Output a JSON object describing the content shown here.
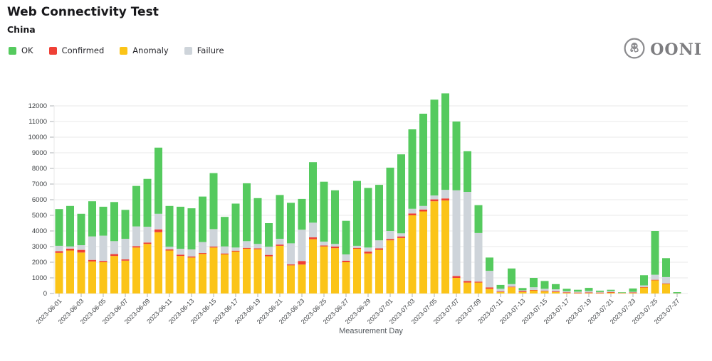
{
  "header": {
    "title": "Web Connectivity Test",
    "subtitle": "China",
    "logo_text": "OONI"
  },
  "legend": {
    "items": [
      {
        "label": "OK",
        "color": "#55ca5e"
      },
      {
        "label": "Confirmed",
        "color": "#ef4036"
      },
      {
        "label": "Anomaly",
        "color": "#fbc418"
      },
      {
        "label": "Failure",
        "color": "#ced4da"
      }
    ]
  },
  "chart_data": {
    "type": "bar",
    "stacked": true,
    "title": "Web Connectivity Test",
    "subtitle": "China",
    "xlabel": "Measurement Day",
    "ylabel": "",
    "ylim": [
      0,
      12900
    ],
    "ytick_step": 1000,
    "ytick_max": 12000,
    "grid": "horizontal",
    "legend_position": "top-left",
    "x_label_every": 2,
    "categories": [
      "2023-06-01",
      "2023-06-02",
      "2023-06-03",
      "2023-06-04",
      "2023-06-05",
      "2023-06-06",
      "2023-06-07",
      "2023-06-08",
      "2023-06-09",
      "2023-06-10",
      "2023-06-11",
      "2023-06-12",
      "2023-06-13",
      "2023-06-14",
      "2023-06-15",
      "2023-06-16",
      "2023-06-17",
      "2023-06-18",
      "2023-06-19",
      "2023-06-20",
      "2023-06-21",
      "2023-06-22",
      "2023-06-23",
      "2023-06-24",
      "2023-06-25",
      "2023-06-26",
      "2023-06-27",
      "2023-06-28",
      "2023-06-29",
      "2023-06-30",
      "2023-07-01",
      "2023-07-02",
      "2023-07-03",
      "2023-07-04",
      "2023-07-05",
      "2023-07-06",
      "2023-07-07",
      "2023-07-08",
      "2023-07-09",
      "2023-07-10",
      "2023-07-11",
      "2023-07-12",
      "2023-07-13",
      "2023-07-14",
      "2023-07-15",
      "2023-07-16",
      "2023-07-17",
      "2023-07-18",
      "2023-07-19",
      "2023-07-20",
      "2023-07-21",
      "2023-07-22",
      "2023-07-23",
      "2023-07-24",
      "2023-07-25",
      "2023-07-26",
      "2023-07-27"
    ],
    "series": [
      {
        "name": "Anomaly",
        "color": "#fbc418",
        "values": [
          2600,
          2750,
          2620,
          2050,
          2000,
          2400,
          2100,
          2940,
          3170,
          3920,
          2750,
          2400,
          2300,
          2530,
          2940,
          2500,
          2680,
          2860,
          2830,
          2380,
          3050,
          1800,
          1850,
          3470,
          3010,
          2900,
          2000,
          2860,
          2560,
          2790,
          3400,
          3550,
          5000,
          5250,
          5900,
          5950,
          1000,
          700,
          700,
          300,
          100,
          400,
          100,
          210,
          150,
          100,
          60,
          50,
          60,
          50,
          80,
          40,
          60,
          400,
          850,
          620,
          10
        ]
      },
      {
        "name": "Confirmed",
        "color": "#ef4036",
        "values": [
          110,
          120,
          170,
          100,
          80,
          120,
          80,
          90,
          90,
          180,
          70,
          80,
          70,
          60,
          60,
          60,
          60,
          60,
          60,
          90,
          80,
          60,
          230,
          120,
          60,
          100,
          100,
          60,
          120,
          100,
          90,
          100,
          120,
          120,
          120,
          130,
          120,
          100,
          60,
          90,
          30,
          40,
          60,
          20,
          20,
          40,
          20,
          10,
          10,
          10,
          10,
          20,
          10,
          20,
          30,
          20,
          0
        ]
      },
      {
        "name": "Failure",
        "color": "#ced4da",
        "values": [
          340,
          140,
          300,
          1500,
          1620,
          830,
          1320,
          1260,
          1010,
          1000,
          170,
          380,
          450,
          700,
          1120,
          450,
          200,
          430,
          280,
          520,
          370,
          1350,
          2000,
          940,
          250,
          170,
          400,
          130,
          260,
          510,
          510,
          200,
          300,
          230,
          250,
          550,
          5480,
          5700,
          3110,
          1060,
          170,
          160,
          50,
          170,
          130,
          130,
          70,
          60,
          90,
          40,
          70,
          10,
          40,
          100,
          320,
          410,
          10
        ]
      },
      {
        "name": "OK",
        "color": "#55ca5e",
        "values": [
          2350,
          2590,
          2010,
          2250,
          1850,
          2500,
          1850,
          2590,
          3060,
          4230,
          2610,
          2690,
          2630,
          2910,
          3580,
          1890,
          2810,
          3700,
          2930,
          1510,
          2800,
          2590,
          1970,
          3870,
          3830,
          3430,
          2150,
          4150,
          3810,
          3550,
          4050,
          5050,
          5080,
          5900,
          6130,
          6170,
          4400,
          2600,
          1780,
          850,
          250,
          1000,
          140,
          600,
          500,
          330,
          150,
          120,
          200,
          80,
          80,
          10,
          210,
          650,
          2800,
          1210,
          70
        ]
      }
    ]
  },
  "colors": {
    "gridline": "#e9e9e9",
    "tick": "#aeb2b6",
    "axis_text": "#3d4043",
    "logo_gray": "#8b8b8e"
  }
}
